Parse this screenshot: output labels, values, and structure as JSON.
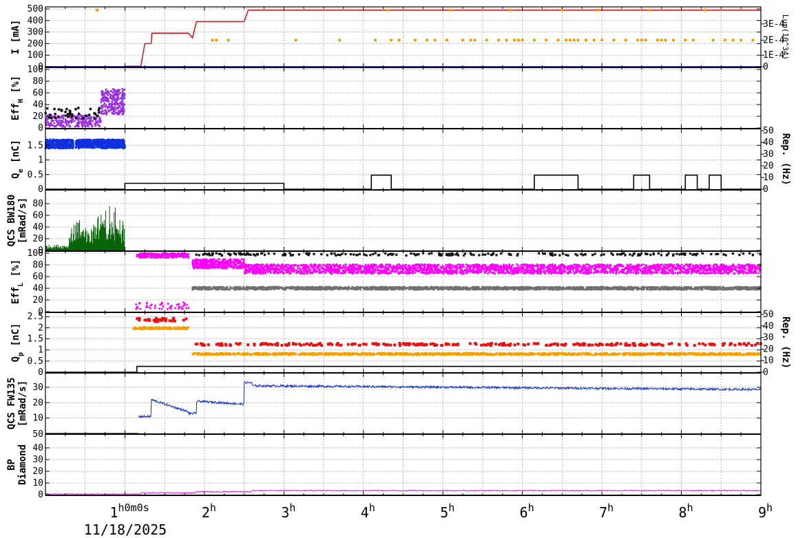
{
  "chart_data": {
    "type": "line",
    "x_range_hours": [
      0,
      9
    ],
    "x_ticks": [
      {
        "h": 1,
        "label": "1",
        "sup": "h0m0s"
      },
      {
        "h": 2,
        "label": "2",
        "sup": "h"
      },
      {
        "h": 3,
        "label": "3",
        "sup": "h"
      },
      {
        "h": 4,
        "label": "4",
        "sup": "h"
      },
      {
        "h": 5,
        "label": "5",
        "sup": "h"
      },
      {
        "h": 6,
        "label": "6",
        "sup": "h"
      },
      {
        "h": 7,
        "label": "7",
        "sup": "h"
      },
      {
        "h": 8,
        "label": "8",
        "sup": "h"
      },
      {
        "h": 9,
        "label": "9",
        "sup": "h"
      }
    ],
    "date_label": "11/18/2025",
    "colors": {
      "current": "#d01010",
      "lumi": "#f0a000",
      "lumi_low": "#0a0a9a",
      "eff_h_black": "#101010",
      "eff_h_purple": "#9a30e0",
      "qe": "#1030e0",
      "rep": "#000000",
      "qcs_bw": "#006000",
      "eff_l_black": "#101010",
      "eff_l_mag": "#ff00ff",
      "eff_l_gray": "#707070",
      "qp_red": "#ee1010",
      "qp_orange": "#f5a000",
      "qcs_fw": "#1030d0",
      "bp": "#d010d0",
      "grid": "#9a9a9a"
    },
    "panels": [
      {
        "id": "current",
        "ylabel": "I [mA]",
        "ylabel_main": "I [mA]",
        "ylabel_sub": "",
        "ylim": [
          0,
          500
        ],
        "left_ticks": [
          "0",
          "100",
          "200",
          "300",
          "400",
          "500"
        ],
        "left_tick_values": [
          0,
          100,
          200,
          300,
          400,
          500
        ],
        "right_label": "Lum(10^34)",
        "right_ticks": [
          "0",
          "1E-4",
          "2E-4",
          "3E-4"
        ],
        "right_tick_values": [
          0,
          100,
          230,
          370
        ],
        "series": [
          {
            "name": "current",
            "steps": [
              [
                0,
                0
              ],
              [
                1.0,
                0
              ],
              [
                1.0,
                5
              ],
              [
                1.2,
                5
              ],
              [
                1.25,
                200
              ],
              [
                1.33,
                200
              ],
              [
                1.34,
                290
              ],
              [
                1.8,
                290
              ],
              [
                1.85,
                250
              ],
              [
                1.9,
                390
              ],
              [
                2.0,
                390
              ],
              [
                2.5,
                390
              ],
              [
                2.55,
                490
              ],
              [
                9.0,
                490
              ]
            ]
          }
        ],
        "lumi_points_hours": [
          0.65,
          2.1,
          2.15,
          2.3,
          3.15,
          3.7,
          4.15,
          4.3,
          4.35,
          4.45,
          4.65,
          4.8,
          4.9,
          5.05,
          5.1,
          5.25,
          5.35,
          5.4,
          5.55,
          5.7,
          5.8,
          5.85,
          5.9,
          5.95,
          6.0,
          6.15,
          6.3,
          6.45,
          6.5,
          6.55,
          6.6,
          6.65,
          6.7,
          6.8,
          6.9,
          6.95,
          7.0,
          7.15,
          7.3,
          7.45,
          7.5,
          7.55,
          7.6,
          7.7,
          7.75,
          7.8,
          7.9,
          8.05,
          8.15,
          8.3,
          8.4,
          8.55,
          8.65,
          8.75,
          8.9
        ]
      },
      {
        "id": "eff_h",
        "ylabel": "EffH [%]",
        "ylabel_main": "Eff",
        "ylabel_sub": "H",
        "ylabel_tail": " [%]",
        "ylim": [
          0,
          100
        ],
        "left_ticks": [
          "0",
          "20",
          "40",
          "60",
          "80",
          "100"
        ],
        "left_tick_values": [
          0,
          20,
          40,
          60,
          80,
          100
        ]
      },
      {
        "id": "qe",
        "ylabel": "Qe [nC]",
        "ylabel_main": "Q",
        "ylabel_sub": "e",
        "ylabel_tail": " [nC]",
        "ylim": [
          0,
          2.0
        ],
        "left_ticks": [
          "0",
          "0.5",
          "1",
          "1.5"
        ],
        "left_tick_values": [
          0,
          0.5,
          1,
          1.5
        ],
        "right_label": "Rep. (Hz)",
        "right_ticks": [
          "0",
          "10",
          "20",
          "30",
          "40",
          "50"
        ],
        "right_tick_values": [
          0,
          10,
          20,
          30,
          40,
          50
        ],
        "rep_steps": [
          [
            0,
            0
          ],
          [
            1.0,
            0
          ],
          [
            1.0,
            5
          ],
          [
            3.0,
            5
          ],
          [
            3.0,
            0
          ],
          [
            4.1,
            0
          ],
          [
            4.1,
            12
          ],
          [
            4.35,
            12
          ],
          [
            4.35,
            0
          ],
          [
            6.15,
            0
          ],
          [
            6.15,
            12
          ],
          [
            6.7,
            12
          ],
          [
            6.7,
            0
          ],
          [
            7.4,
            0
          ],
          [
            7.4,
            12
          ],
          [
            7.6,
            12
          ],
          [
            7.6,
            0
          ],
          [
            8.05,
            0
          ],
          [
            8.05,
            12
          ],
          [
            8.2,
            12
          ],
          [
            8.2,
            0
          ],
          [
            8.35,
            0
          ],
          [
            8.35,
            12
          ],
          [
            8.5,
            12
          ],
          [
            8.5,
            0
          ],
          [
            9.0,
            0
          ]
        ]
      },
      {
        "id": "qcs_bw",
        "ylabel": "QCS BW180 [mRad/s]",
        "ylabel_main": "QCS BW180",
        "ylabel_sub": "[mRad/s]",
        "ylim": [
          0,
          100
        ],
        "left_ticks": [
          "0",
          "20",
          "40",
          "60",
          "80"
        ],
        "left_tick_values": [
          0,
          20,
          40,
          60,
          80
        ]
      },
      {
        "id": "eff_l",
        "ylabel": "EffL [%]",
        "ylabel_main": "Eff",
        "ylabel_sub": "L",
        "ylabel_tail": " [%]",
        "ylim": [
          0,
          100
        ],
        "left_ticks": [
          "0",
          "20",
          "40",
          "60",
          "80",
          "100"
        ],
        "left_tick_values": [
          0,
          20,
          40,
          60,
          80,
          100
        ]
      },
      {
        "id": "qp",
        "ylabel": "Qp [nC]",
        "ylabel_main": "Q",
        "ylabel_sub": "p",
        "ylabel_tail": " [nC]",
        "ylim": [
          0,
          2.6
        ],
        "left_ticks": [
          "0",
          "0.5",
          "1",
          "1.5",
          "2",
          "2.5"
        ],
        "left_tick_values": [
          0,
          0.5,
          1,
          1.5,
          2,
          2.5
        ],
        "right_label": "Rep. (Hz)",
        "right_ticks": [
          "0",
          "10",
          "20",
          "30",
          "40",
          "50"
        ],
        "right_tick_values": [
          0,
          10,
          20,
          30,
          40,
          50
        ],
        "rep_steps": [
          [
            0,
            0
          ],
          [
            1.15,
            0
          ],
          [
            1.15,
            5
          ],
          [
            1.85,
            5
          ],
          [
            1.85,
            5
          ],
          [
            9.0,
            5
          ]
        ]
      },
      {
        "id": "qcs_fw",
        "ylabel": "QCS FW135 [mRad/s]",
        "ylabel_main": "QCS FW135",
        "ylabel_sub": "[mRad/s]",
        "ylim": [
          0,
          38
        ],
        "left_ticks": [
          "10",
          "20",
          "30"
        ],
        "left_tick_values": [
          10,
          20,
          30
        ],
        "bottom_label": "50"
      },
      {
        "id": "bp",
        "ylabel": "BP Diamond",
        "ylabel_main": "BP",
        "ylabel_sub": "Diamond",
        "ylim": [
          0,
          50
        ],
        "left_ticks": [
          "0",
          "10",
          "20",
          "30",
          "40"
        ],
        "left_tick_values": [
          0,
          10,
          20,
          30,
          40
        ]
      }
    ]
  }
}
